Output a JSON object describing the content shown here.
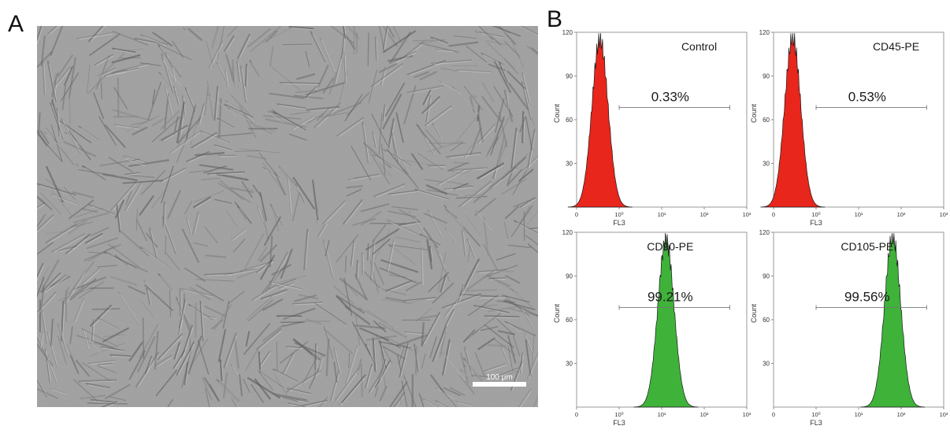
{
  "panels": {
    "a": {
      "letter": "A",
      "scale_bar_label": "100 μm"
    },
    "b": {
      "letter": "B"
    }
  },
  "chart_data": [
    {
      "type": "area",
      "title": "Control",
      "percent_label": "0.33%",
      "xlabel": "FL3",
      "ylabel": "Count",
      "xscale": "log",
      "xlim": [
        0,
        1000
      ],
      "x_ticks": [
        "0",
        "10⁰",
        "10¹",
        "10²",
        "10³"
      ],
      "ylim": [
        0,
        120
      ],
      "y_ticks": [
        30,
        60,
        90,
        120
      ],
      "peak_x_decade": -0.45,
      "peak_count": 115,
      "fill": "#e8261c"
    },
    {
      "type": "area",
      "title": "CD45-PE",
      "percent_label": "0.53%",
      "xlabel": "FL3",
      "ylabel": "Count",
      "xscale": "log",
      "xlim": [
        0,
        1000
      ],
      "x_ticks": [
        "0",
        "10⁰",
        "10¹",
        "10²",
        "10³"
      ],
      "ylim": [
        0,
        120
      ],
      "y_ticks": [
        30,
        60,
        90,
        120
      ],
      "peak_x_decade": -0.55,
      "peak_count": 116,
      "fill": "#e8261c"
    },
    {
      "type": "area",
      "title": "CD90-PE",
      "percent_label": "99.21%",
      "xlabel": "FL3",
      "ylabel": "Count",
      "xscale": "log",
      "xlim": [
        0,
        1000
      ],
      "x_ticks": [
        "0",
        "10⁰",
        "10¹",
        "10²",
        "10³"
      ],
      "ylim": [
        0,
        120
      ],
      "y_ticks": [
        30,
        60,
        90,
        120
      ],
      "peak_x_decade": 1.1,
      "peak_count": 115,
      "fill": "#3fb23a"
    },
    {
      "type": "area",
      "title": "CD105-PE",
      "percent_label": "99.56%",
      "xlabel": "FL3",
      "ylabel": "Count",
      "xscale": "log",
      "xlim": [
        0,
        1000
      ],
      "x_ticks": [
        "0",
        "10⁰",
        "10¹",
        "10²",
        "10³"
      ],
      "ylim": [
        0,
        120
      ],
      "y_ticks": [
        30,
        60,
        90,
        120
      ],
      "peak_x_decade": 1.8,
      "peak_count": 117,
      "fill": "#3fb23a"
    }
  ]
}
